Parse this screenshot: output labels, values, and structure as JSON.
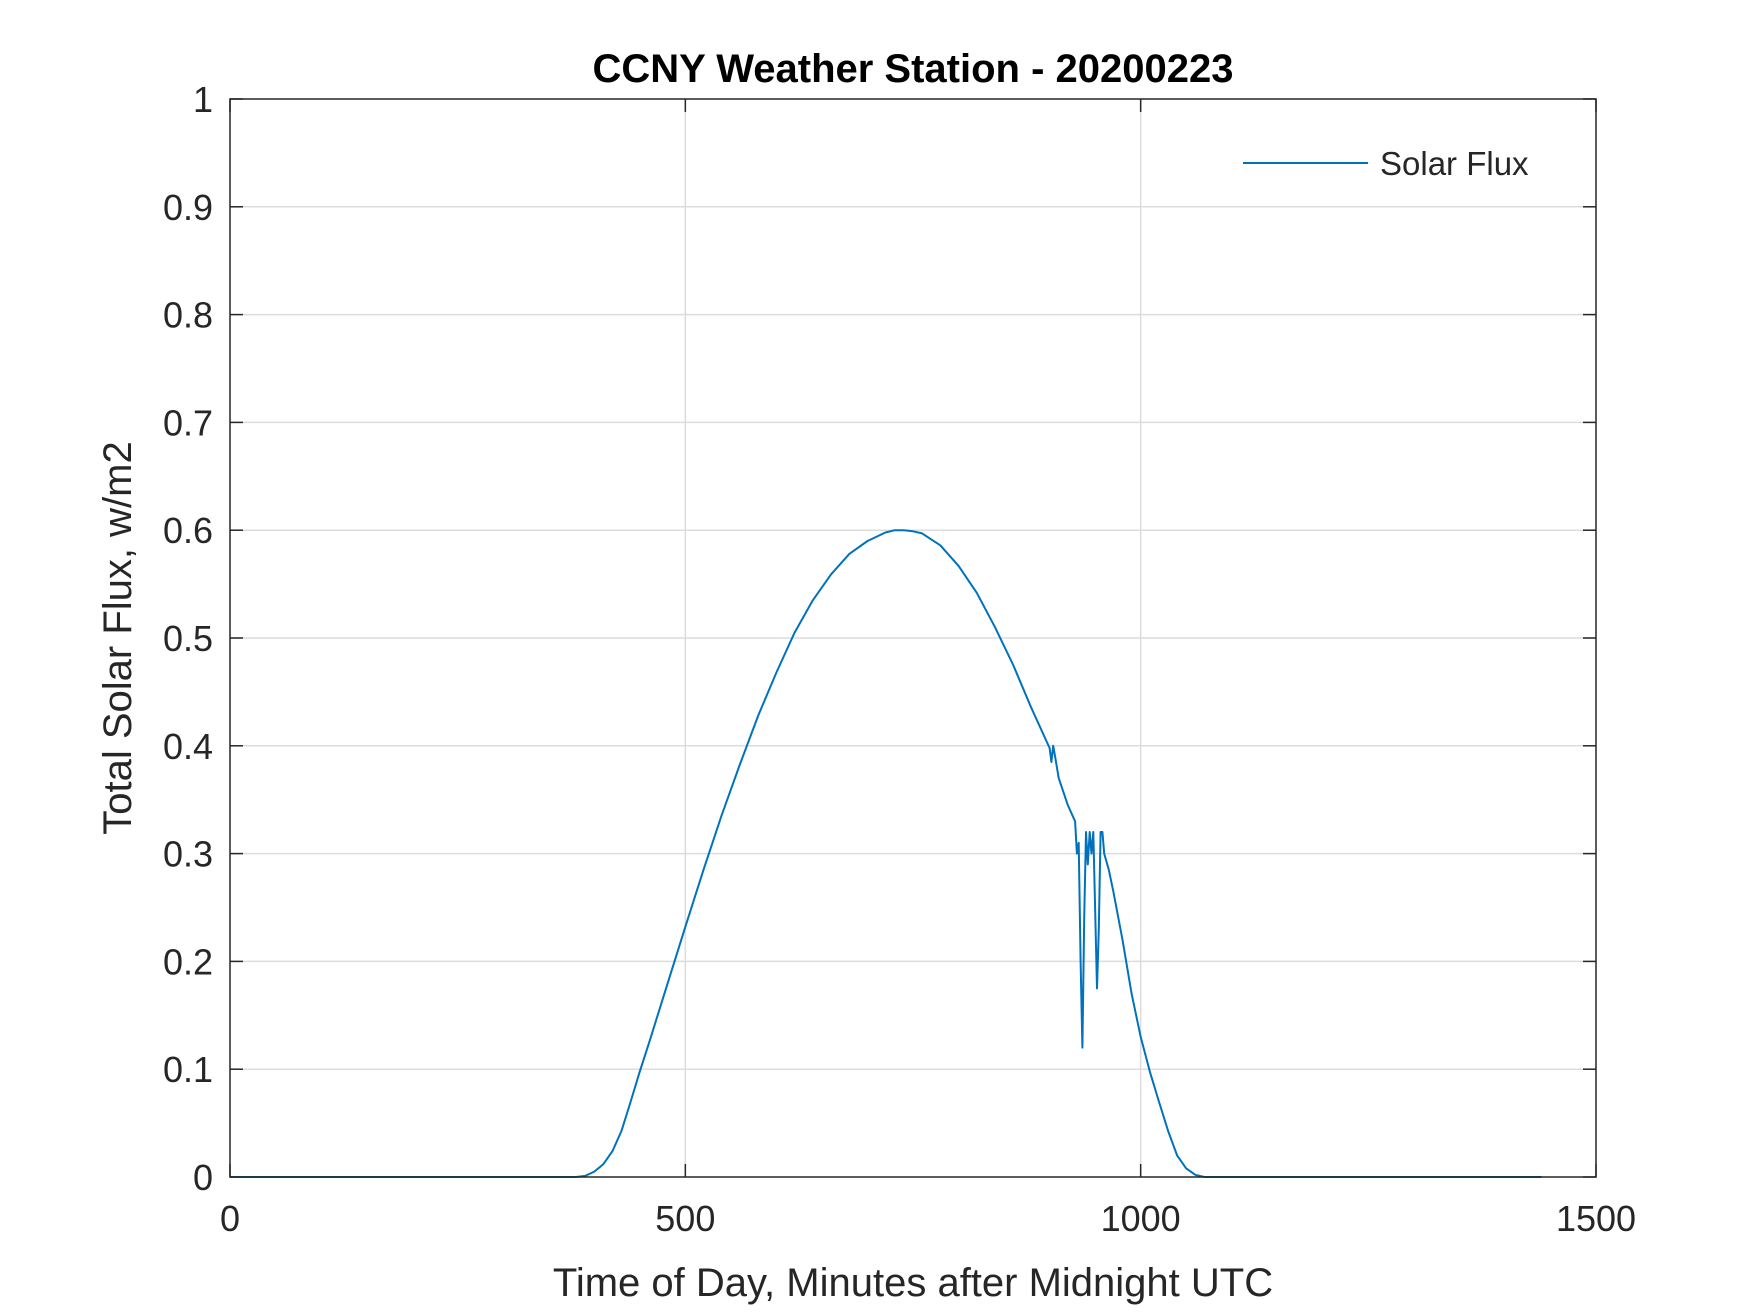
{
  "chart_data": {
    "type": "line",
    "title": "CCNY Weather Station - 20200223",
    "xlabel": "Time of Day, Minutes after Midnight UTC",
    "ylabel": "Total Solar Flux, w/m2",
    "xlim": [
      0,
      1500
    ],
    "ylim": [
      0,
      1
    ],
    "xticks": [
      0,
      500,
      1000,
      1500
    ],
    "xtick_labels": [
      "0",
      "500",
      "1000",
      "1500"
    ],
    "yticks": [
      0,
      0.1,
      0.2,
      0.3,
      0.4,
      0.5,
      0.6,
      0.7,
      0.8,
      0.9,
      1
    ],
    "ytick_labels": [
      "0",
      "0.1",
      "0.2",
      "0.3",
      "0.4",
      "0.5",
      "0.6",
      "0.7",
      "0.8",
      "0.9",
      "1"
    ],
    "grid": true,
    "legend_position": "top-right",
    "series": [
      {
        "name": "Solar Flux",
        "color": "#0072BD",
        "x": [
          0,
          100,
          200,
          300,
          380,
          390,
          400,
          410,
          420,
          430,
          440,
          450,
          460,
          480,
          500,
          520,
          540,
          560,
          580,
          600,
          620,
          640,
          660,
          680,
          700,
          720,
          730,
          740,
          750,
          760,
          780,
          800,
          820,
          840,
          860,
          880,
          900,
          902,
          904,
          906,
          910,
          920,
          928,
          930,
          932,
          934,
          936,
          938,
          940,
          942,
          944,
          946,
          948,
          950,
          952,
          954,
          956,
          958,
          960,
          965,
          970,
          980,
          990,
          1000,
          1010,
          1020,
          1030,
          1040,
          1050,
          1060,
          1070,
          1080,
          1100,
          1200,
          1300,
          1440
        ],
        "y": [
          0,
          0,
          0,
          0,
          0,
          0.001,
          0.005,
          0.012,
          0.024,
          0.043,
          0.07,
          0.098,
          0.124,
          0.178,
          0.232,
          0.285,
          0.336,
          0.383,
          0.428,
          0.468,
          0.505,
          0.535,
          0.559,
          0.578,
          0.59,
          0.598,
          0.6,
          0.6,
          0.599,
          0.597,
          0.586,
          0.567,
          0.542,
          0.51,
          0.475,
          0.435,
          0.398,
          0.385,
          0.4,
          0.39,
          0.37,
          0.345,
          0.33,
          0.3,
          0.31,
          0.2,
          0.12,
          0.24,
          0.32,
          0.29,
          0.32,
          0.3,
          0.32,
          0.25,
          0.175,
          0.23,
          0.32,
          0.32,
          0.3,
          0.285,
          0.265,
          0.22,
          0.17,
          0.13,
          0.098,
          0.07,
          0.043,
          0.02,
          0.008,
          0.002,
          0,
          0,
          0,
          0,
          0,
          0
        ]
      }
    ]
  }
}
